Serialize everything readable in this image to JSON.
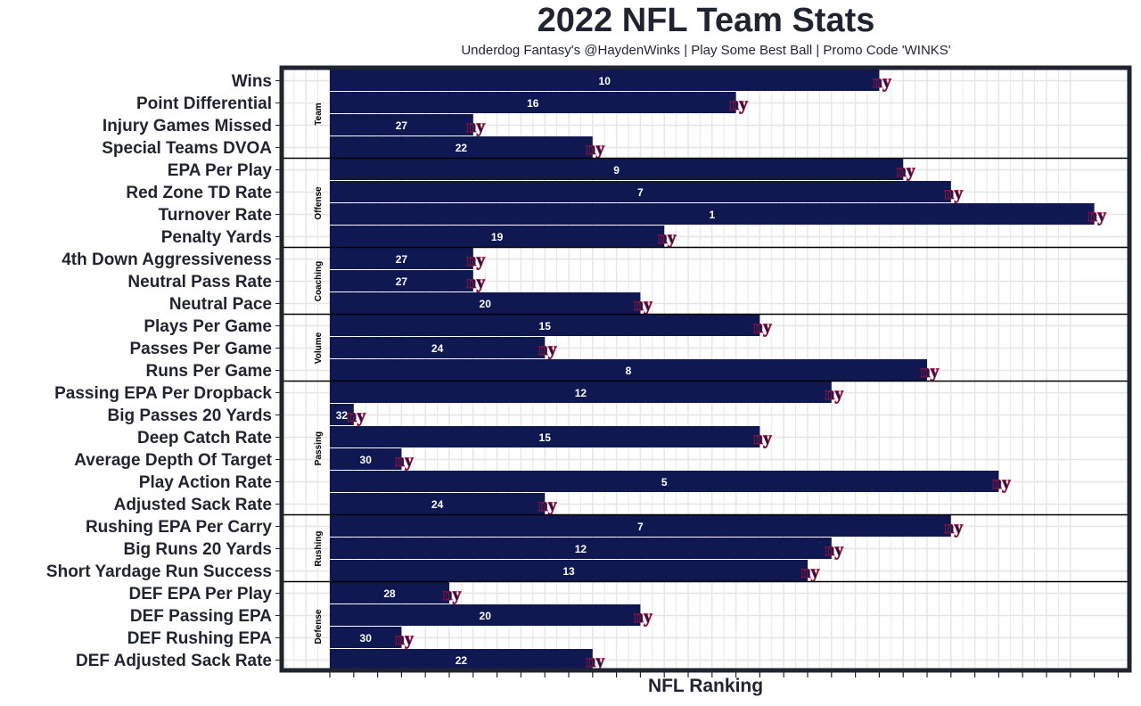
{
  "chart_data": {
    "type": "bar",
    "orientation": "horizontal",
    "title": "2022 NFL Team Stats",
    "subtitle": "Underdog Fantasy's @HaydenWinks | Play Some Best Ball | Promo Code 'WINKS'",
    "xlabel": "NFL Ranking",
    "ylabel": "",
    "x_range": [
      0,
      32
    ],
    "value_note": "Bar length = 33 - rank (rank 1 is longest)",
    "grid": true,
    "team_logo": "NY Giants",
    "colors": {
      "bar": "#0f1850",
      "text": "#1f2430",
      "logo": "#a3113a"
    },
    "groups": [
      {
        "name": "Team",
        "categories": [
          "Wins",
          "Point Differential",
          "Injury Games Missed",
          "Special Teams DVOA"
        ],
        "ranks": [
          10,
          16,
          27,
          22
        ]
      },
      {
        "name": "Offense",
        "categories": [
          "EPA Per Play",
          "Red Zone TD Rate",
          "Turnover Rate",
          "Penalty Yards"
        ],
        "ranks": [
          9,
          7,
          1,
          19
        ]
      },
      {
        "name": "Coaching",
        "categories": [
          "4th Down Aggressiveness",
          "Neutral Pass Rate",
          "Neutral Pace"
        ],
        "ranks": [
          27,
          27,
          20
        ]
      },
      {
        "name": "Volume",
        "categories": [
          "Plays Per Game",
          "Passes Per Game",
          "Runs Per Game"
        ],
        "ranks": [
          15,
          24,
          8
        ]
      },
      {
        "name": "Passing",
        "categories": [
          "Passing EPA Per Dropback",
          "Big Passes 20 Yards",
          "Deep Catch Rate",
          "Average Depth Of Target",
          "Play Action Rate",
          "Adjusted Sack Rate"
        ],
        "ranks": [
          12,
          32,
          15,
          30,
          5,
          24
        ]
      },
      {
        "name": "Rushing",
        "categories": [
          "Rushing EPA Per Carry",
          "Big Runs 20 Yards",
          "Short Yardage Run Success"
        ],
        "ranks": [
          7,
          12,
          13
        ]
      },
      {
        "name": "Defense",
        "categories": [
          "DEF EPA Per Play",
          "DEF Passing EPA",
          "DEF Rushing EPA",
          "DEF Adjusted Sack Rate"
        ],
        "ranks": [
          28,
          20,
          30,
          22
        ]
      }
    ]
  }
}
